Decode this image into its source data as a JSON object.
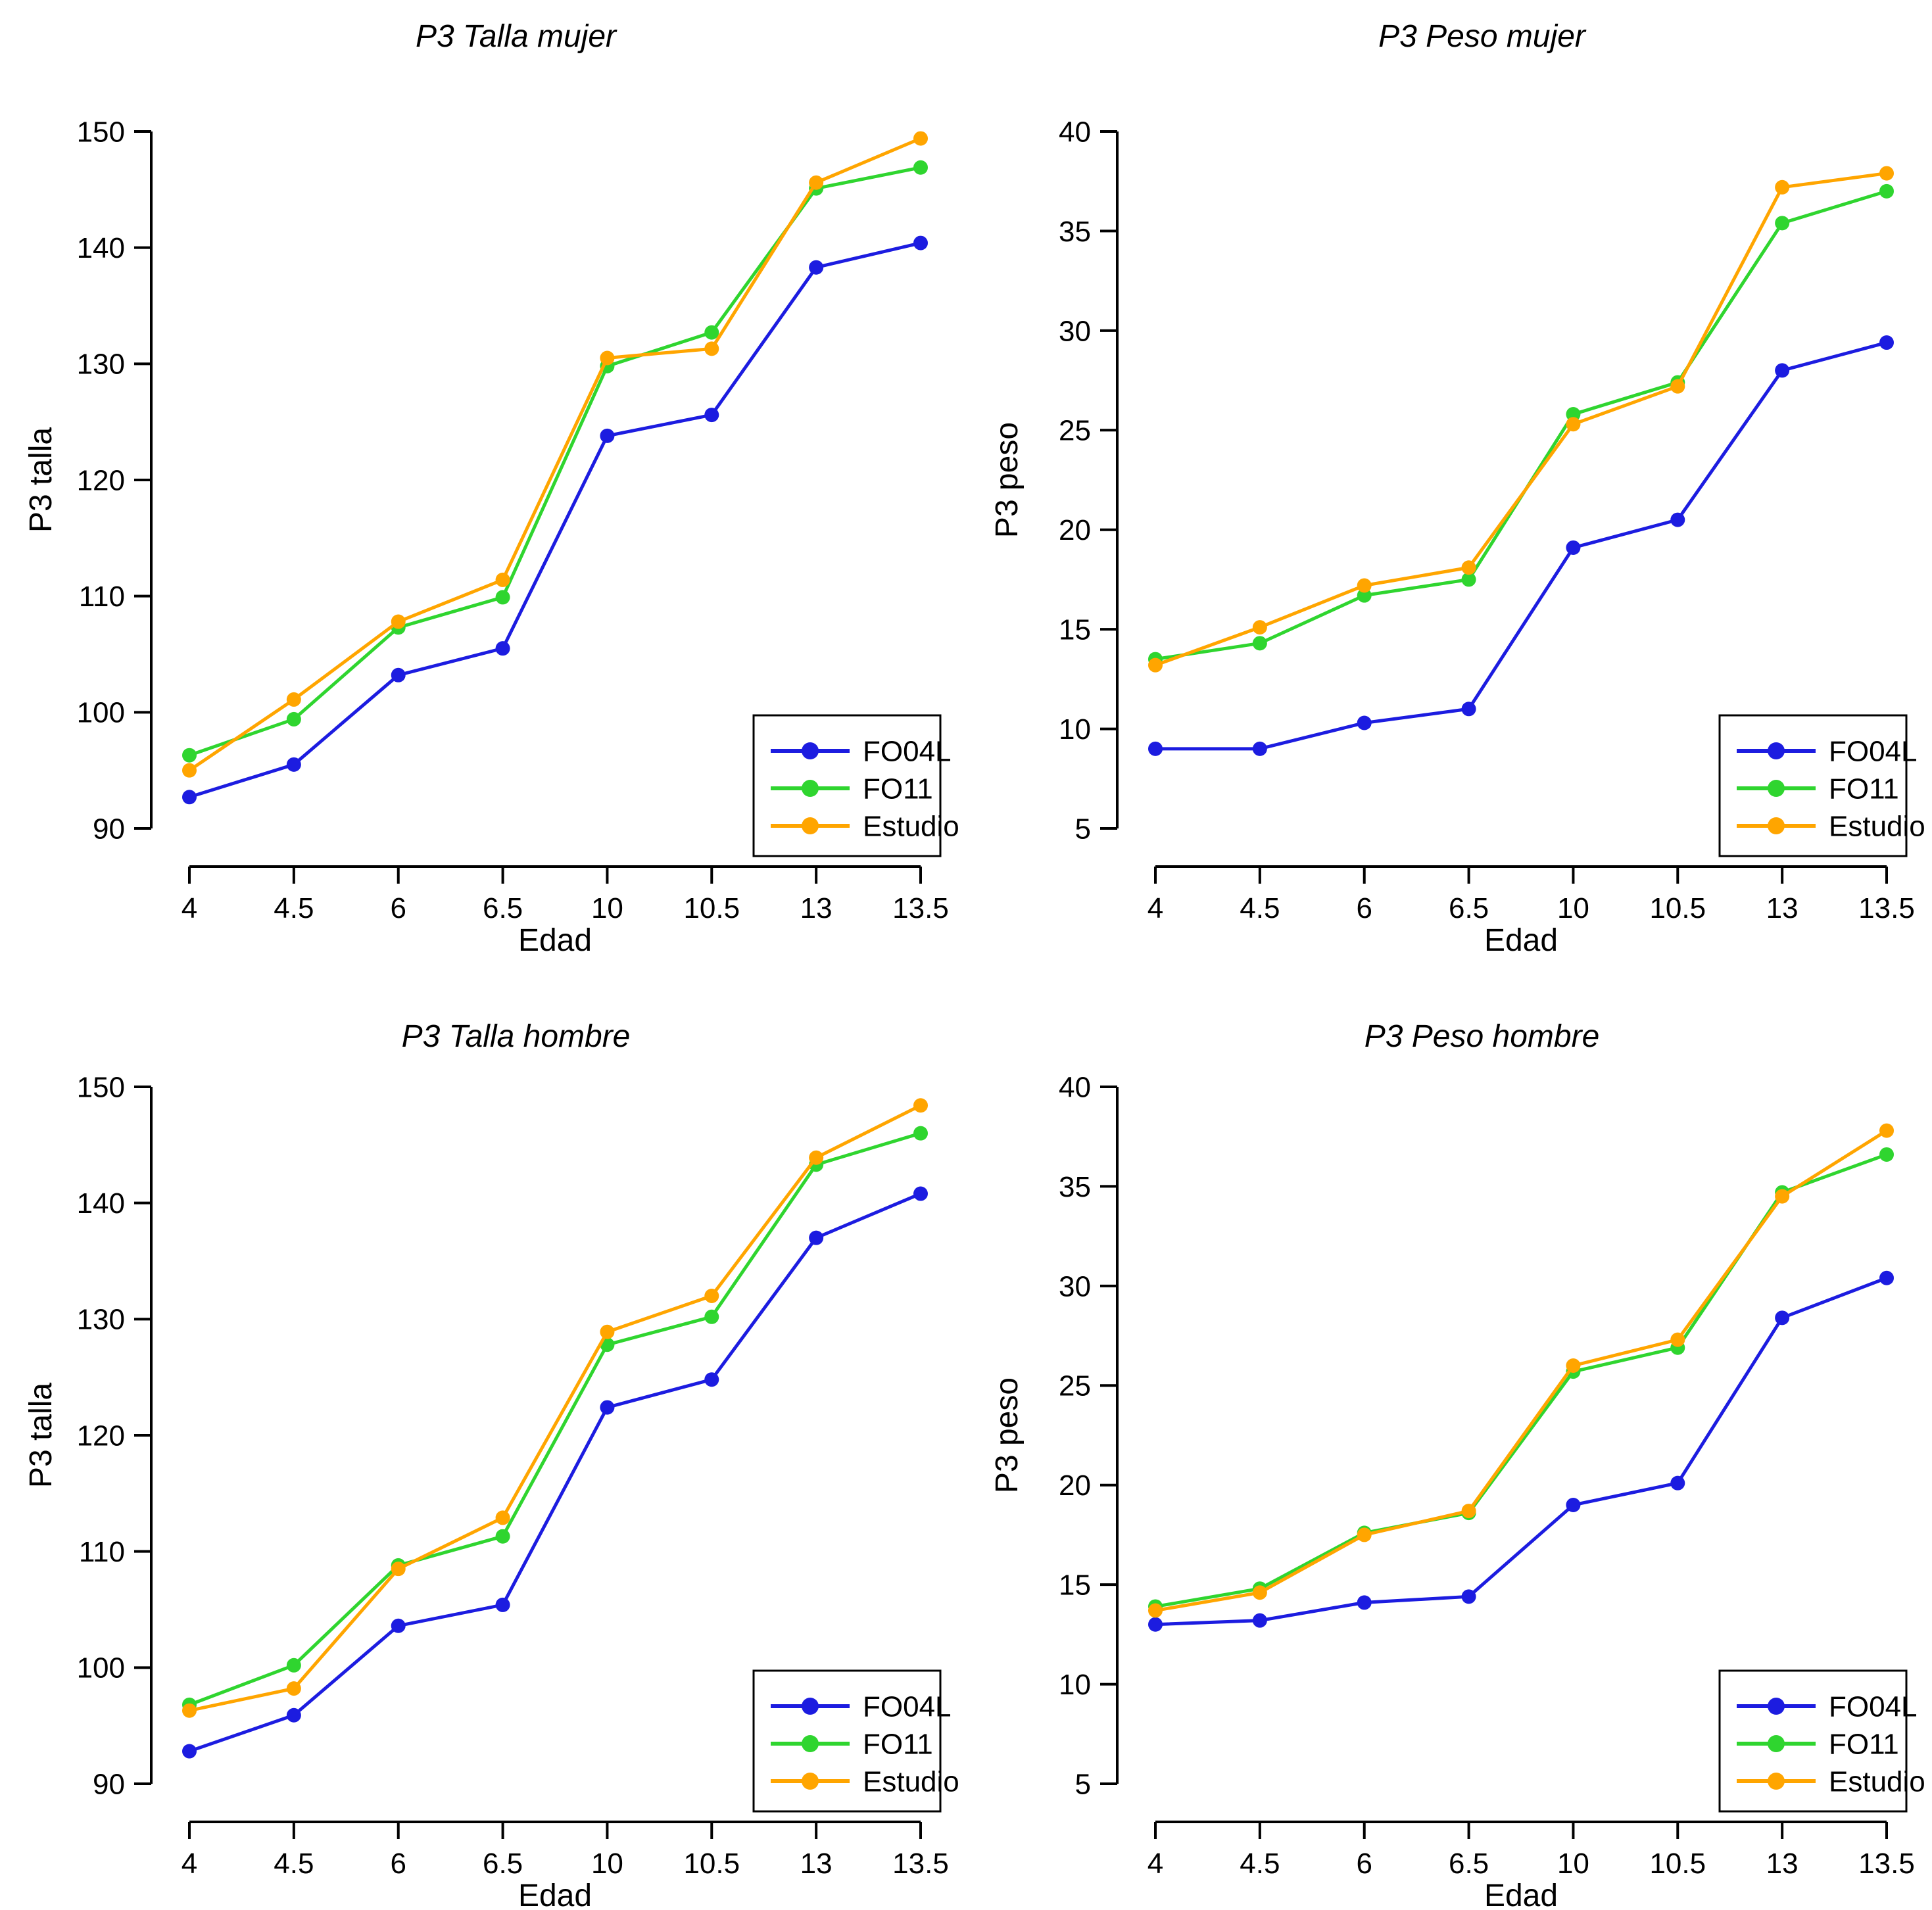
{
  "page": {
    "xlabel": "Edad",
    "categories": [
      "4",
      "4.5",
      "6",
      "6.5",
      "10",
      "10.5",
      "13",
      "13.5"
    ],
    "legend_items": [
      "FO04L",
      "FO11",
      "Estudio"
    ],
    "colors": {
      "FO04L": "#1C1CE0",
      "FO11": "#2FD52F",
      "Estudio": "#FFA500",
      "axis": "#000000",
      "background": "#ffffff",
      "legend_border": "#000000"
    }
  },
  "chart_data": [
    {
      "type": "line",
      "title": "P3 Talla mujer",
      "xlabel": "Edad",
      "ylabel": "P3 talla",
      "categories": [
        "4",
        "4.5",
        "6",
        "6.5",
        "10",
        "10.5",
        "13",
        "13.5"
      ],
      "yticks": [
        90,
        100,
        110,
        120,
        130,
        140,
        150
      ],
      "ylim": [
        90,
        150
      ],
      "grid": false,
      "legend_position": "bottom-right",
      "series": [
        {
          "name": "FO04L",
          "color": "#1C1CE0",
          "values": [
            92.7,
            95.5,
            103.2,
            105.5,
            123.8,
            125.6,
            138.3,
            140.4
          ]
        },
        {
          "name": "FO11",
          "color": "#2FD52F",
          "values": [
            96.3,
            99.4,
            107.3,
            109.9,
            129.8,
            132.7,
            145.1,
            146.9
          ]
        },
        {
          "name": "Estudio",
          "color": "#FFA500",
          "values": [
            95.0,
            101.1,
            107.8,
            111.4,
            130.5,
            131.3,
            145.6,
            149.4
          ]
        }
      ]
    },
    {
      "type": "line",
      "title": "P3 Peso mujer",
      "xlabel": "Edad",
      "ylabel": "P3 peso",
      "categories": [
        "4",
        "4.5",
        "6",
        "6.5",
        "10",
        "10.5",
        "13",
        "13.5"
      ],
      "yticks": [
        5,
        10,
        15,
        20,
        25,
        30,
        35,
        40
      ],
      "ylim": [
        5,
        40
      ],
      "grid": false,
      "legend_position": "bottom-right",
      "series": [
        {
          "name": "FO04L",
          "color": "#1C1CE0",
          "values": [
            9.0,
            9.0,
            10.3,
            11.0,
            19.1,
            20.5,
            28.0,
            29.4
          ]
        },
        {
          "name": "FO11",
          "color": "#2FD52F",
          "values": [
            13.5,
            14.3,
            16.7,
            17.5,
            25.8,
            27.4,
            35.4,
            37.0
          ]
        },
        {
          "name": "Estudio",
          "color": "#FFA500",
          "values": [
            13.2,
            15.1,
            17.2,
            18.1,
            25.3,
            27.2,
            37.2,
            37.9
          ]
        }
      ]
    },
    {
      "type": "line",
      "title": "P3 Talla hombre",
      "xlabel": "Edad",
      "ylabel": "P3 talla",
      "categories": [
        "4",
        "4.5",
        "6",
        "6.5",
        "10",
        "10.5",
        "13",
        "13.5"
      ],
      "yticks": [
        90,
        100,
        110,
        120,
        130,
        140,
        150
      ],
      "ylim": [
        90,
        150
      ],
      "grid": false,
      "legend_position": "bottom-right",
      "series": [
        {
          "name": "FO04L",
          "color": "#1C1CE0",
          "values": [
            92.8,
            95.9,
            103.6,
            105.4,
            122.4,
            124.8,
            137.0,
            140.8
          ]
        },
        {
          "name": "FO11",
          "color": "#2FD52F",
          "values": [
            96.8,
            100.2,
            108.8,
            111.3,
            127.8,
            130.2,
            143.3,
            146.0
          ]
        },
        {
          "name": "Estudio",
          "color": "#FFA500",
          "values": [
            96.3,
            98.2,
            108.5,
            112.9,
            128.9,
            132.0,
            143.9,
            148.4
          ]
        }
      ]
    },
    {
      "type": "line",
      "title": "P3 Peso hombre",
      "xlabel": "Edad",
      "ylabel": "P3 peso",
      "categories": [
        "4",
        "4.5",
        "6",
        "6.5",
        "10",
        "10.5",
        "13",
        "13.5"
      ],
      "yticks": [
        5,
        10,
        15,
        20,
        25,
        30,
        35,
        40
      ],
      "ylim": [
        5,
        40
      ],
      "grid": false,
      "legend_position": "bottom-right",
      "series": [
        {
          "name": "FO04L",
          "color": "#1C1CE0",
          "values": [
            13.0,
            13.2,
            14.1,
            14.4,
            19.0,
            20.1,
            28.4,
            30.4
          ]
        },
        {
          "name": "FO11",
          "color": "#2FD52F",
          "values": [
            13.9,
            14.8,
            17.6,
            18.6,
            25.7,
            26.9,
            34.7,
            36.6
          ]
        },
        {
          "name": "Estudio",
          "color": "#FFA500",
          "values": [
            13.7,
            14.6,
            17.5,
            18.7,
            26.0,
            27.3,
            34.5,
            37.8
          ]
        }
      ]
    }
  ]
}
